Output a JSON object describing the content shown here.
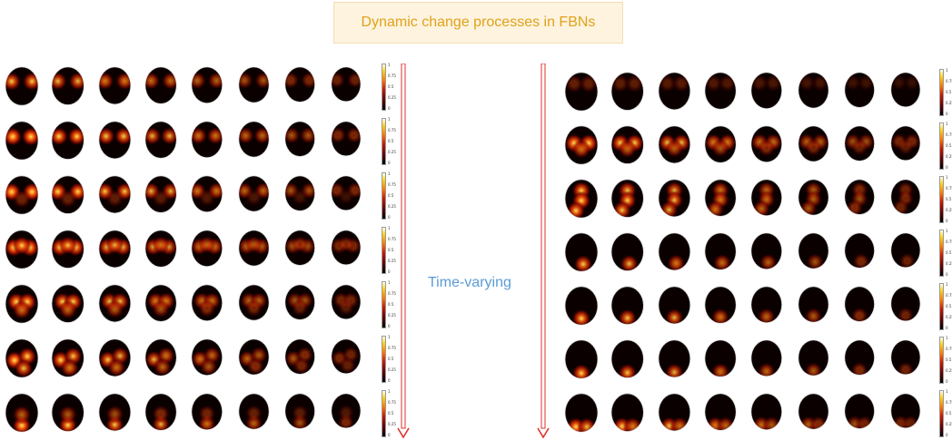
{
  "title": "Dynamic change processes in FBNs",
  "middle_label": "Time-varying",
  "colorbar_ticks": [
    "1",
    "0.75",
    "0.5",
    "0.25",
    "0"
  ],
  "colors": {
    "title_text": "#e0a21a",
    "title_bg": "#fdf3df",
    "middle_label": "#5b9bd5",
    "arrow": "#e0312a"
  },
  "left_panel": {
    "rows": 7,
    "cols": 8,
    "blobs_by_row": [
      [
        [
          0.22,
          0.38,
          0.85
        ],
        [
          0.78,
          0.38,
          0.85
        ]
      ],
      [
        [
          0.25,
          0.4,
          1.0
        ],
        [
          0.75,
          0.4,
          1.0
        ]
      ],
      [
        [
          0.22,
          0.42,
          1.0
        ],
        [
          0.78,
          0.42,
          1.0
        ],
        [
          0.5,
          0.6,
          0.4
        ]
      ],
      [
        [
          0.28,
          0.45,
          1.0
        ],
        [
          0.72,
          0.45,
          1.0
        ],
        [
          0.5,
          0.4,
          0.9
        ]
      ],
      [
        [
          0.35,
          0.45,
          0.95
        ],
        [
          0.65,
          0.45,
          0.95
        ],
        [
          0.5,
          0.65,
          0.7
        ]
      ],
      [
        [
          0.3,
          0.55,
          1.0
        ],
        [
          0.65,
          0.45,
          0.9
        ],
        [
          0.55,
          0.75,
          0.8
        ]
      ],
      [
        [
          0.5,
          0.82,
          1.0
        ],
        [
          0.5,
          0.55,
          0.6
        ]
      ]
    ]
  },
  "right_panel": {
    "rows": 7,
    "cols": 8,
    "blobs_by_row": [
      [
        [
          0.3,
          0.3,
          0.35
        ],
        [
          0.7,
          0.3,
          0.35
        ]
      ],
      [
        [
          0.3,
          0.45,
          0.95
        ],
        [
          0.7,
          0.45,
          0.95
        ],
        [
          0.5,
          0.6,
          0.7
        ]
      ],
      [
        [
          0.5,
          0.3,
          0.9
        ],
        [
          0.5,
          0.55,
          0.95
        ],
        [
          0.35,
          0.8,
          0.9
        ]
      ],
      [
        [
          0.55,
          0.8,
          0.85
        ]
      ],
      [
        [
          0.5,
          0.82,
          0.9
        ]
      ],
      [
        [
          0.5,
          0.85,
          0.9
        ]
      ],
      [
        [
          0.35,
          0.85,
          0.95
        ],
        [
          0.65,
          0.85,
          0.8
        ]
      ]
    ]
  }
}
